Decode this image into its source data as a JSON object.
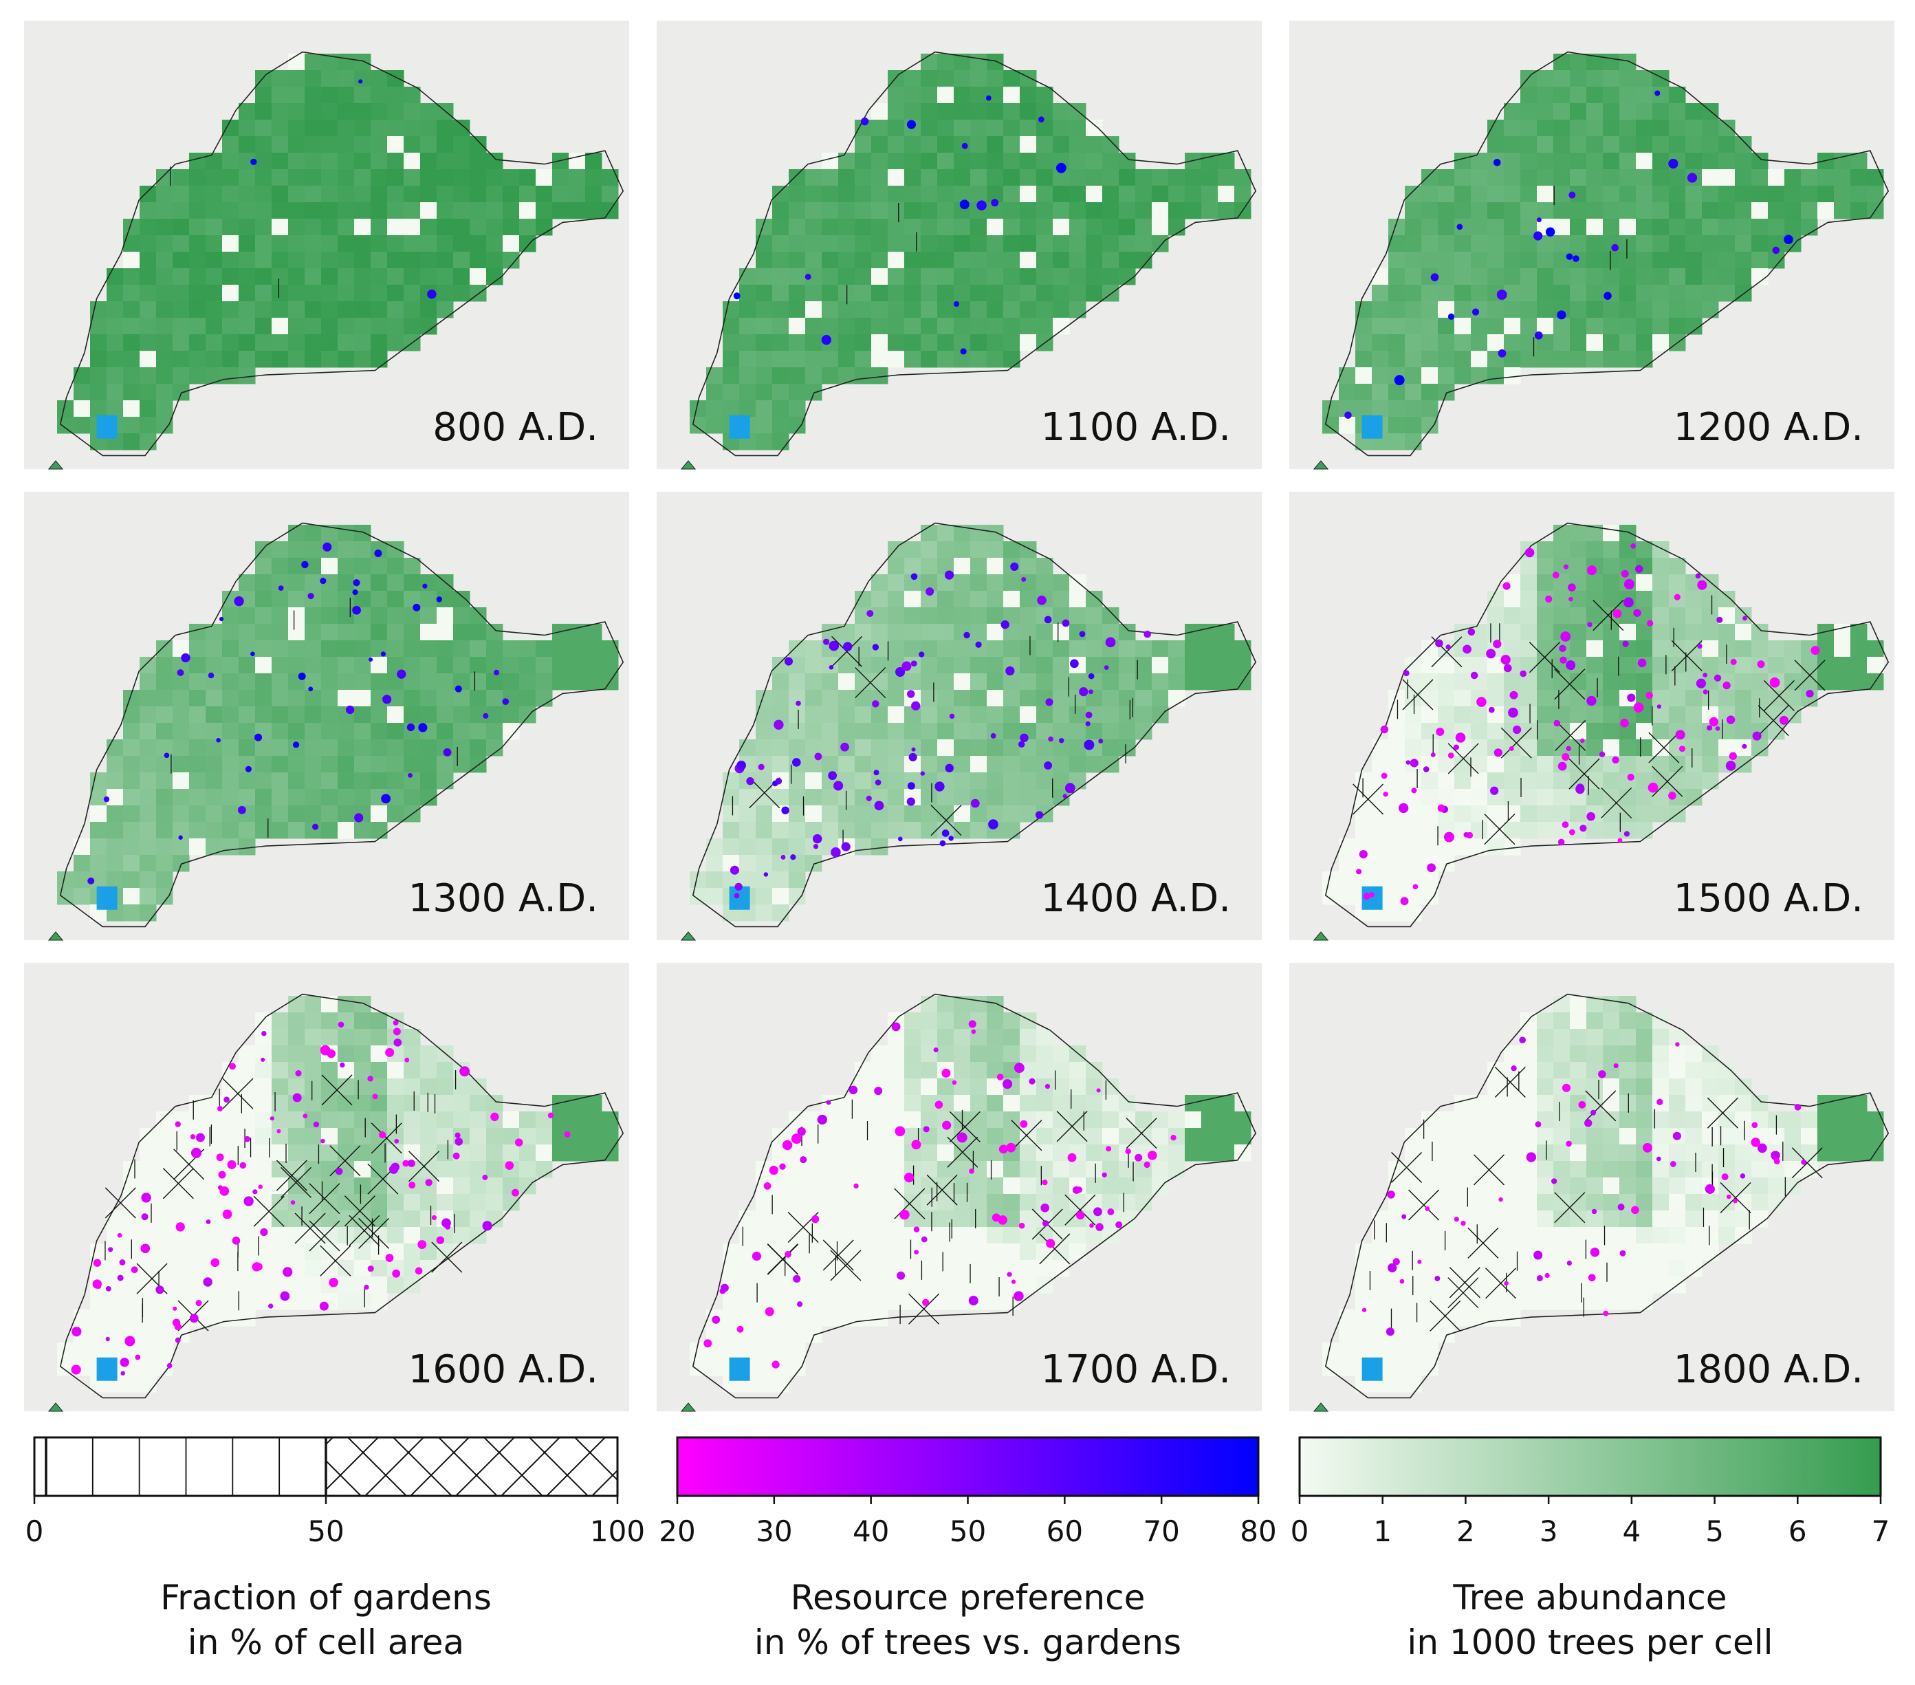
{
  "chart_data": {
    "type": "map-panels",
    "panels": [
      {
        "year_label": "800 A.D.",
        "tree_level": 0.95,
        "pref_points": 3,
        "pref_mean": 78,
        "garden_fraction": 2,
        "hatched_cells": 0
      },
      {
        "year_label": "1100 A.D.",
        "tree_level": 0.92,
        "pref_points": 14,
        "pref_mean": 76,
        "garden_fraction": 4,
        "hatched_cells": 0
      },
      {
        "year_label": "1200 A.D.",
        "tree_level": 0.88,
        "pref_points": 24,
        "pref_mean": 74,
        "garden_fraction": 6,
        "hatched_cells": 0
      },
      {
        "year_label": "1300 A.D.",
        "tree_level": 0.8,
        "pref_points": 45,
        "pref_mean": 70,
        "garden_fraction": 10,
        "hatched_cells": 0
      },
      {
        "year_label": "1400 A.D.",
        "tree_level": 0.65,
        "pref_points": 90,
        "pref_mean": 55,
        "garden_fraction": 30,
        "hatched_cells": 4
      },
      {
        "year_label": "1500 A.D.",
        "tree_level": 0.45,
        "pref_points": 120,
        "pref_mean": 30,
        "garden_fraction": 55,
        "hatched_cells": 18
      },
      {
        "year_label": "1600 A.D.",
        "tree_level": 0.25,
        "pref_points": 110,
        "pref_mean": 25,
        "garden_fraction": 65,
        "hatched_cells": 22
      },
      {
        "year_label": "1700 A.D.",
        "tree_level": 0.15,
        "pref_points": 80,
        "pref_mean": 24,
        "garden_fraction": 60,
        "hatched_cells": 16
      },
      {
        "year_label": "1800 A.D.",
        "tree_level": 0.1,
        "pref_points": 55,
        "pref_mean": 25,
        "garden_fraction": 58,
        "hatched_cells": 14
      }
    ],
    "colorbars": [
      {
        "kind": "hatch",
        "range": [
          0,
          100
        ],
        "threshold": 50,
        "ticks": [
          "0",
          "50",
          "100"
        ],
        "tick_values": [
          0,
          50,
          100
        ],
        "label_line1": "Fraction of gardens",
        "label_line2": "in % of cell area"
      },
      {
        "kind": "gradient",
        "range": [
          20,
          80
        ],
        "ticks": [
          "20",
          "30",
          "40",
          "50",
          "60",
          "70",
          "80"
        ],
        "tick_values": [
          20,
          30,
          40,
          50,
          60,
          70,
          80
        ],
        "label_line1": "Resource preference",
        "label_line2": "in % of trees vs. gardens"
      },
      {
        "kind": "gradient",
        "range": [
          0,
          7
        ],
        "ticks": [
          "0",
          "1",
          "2",
          "3",
          "4",
          "5",
          "6",
          "7"
        ],
        "tick_values": [
          0,
          1,
          2,
          3,
          4,
          5,
          6,
          7
        ],
        "label_line1": "Tree abundance",
        "label_line2": "in 1000 trees per cell"
      }
    ],
    "colors": {
      "panel_bg": "#ecedeb",
      "tree_low": "#f4faf2",
      "tree_high": "#359c4f",
      "pref_low": "#ff00ff",
      "pref_high": "#0000ff",
      "lake": "#1aa0e6",
      "outline": "#222222"
    }
  }
}
